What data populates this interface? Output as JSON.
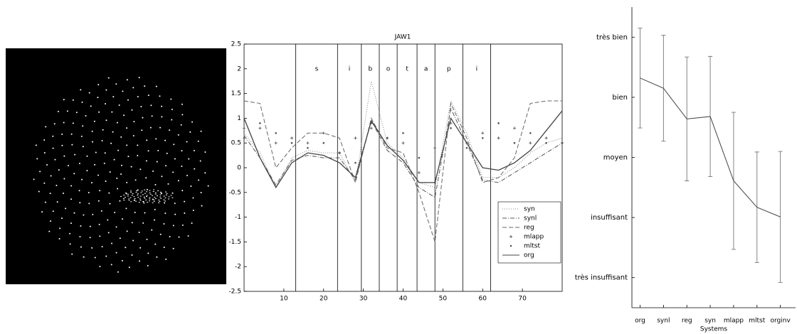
{
  "chart_data": [
    {
      "type": "line",
      "title": "JAW1",
      "x": [
        0,
        4,
        8,
        12,
        16,
        20,
        24,
        28,
        32,
        36,
        40,
        44,
        48,
        52,
        56,
        60,
        64,
        68,
        72,
        76,
        80
      ],
      "xlim": [
        0,
        80
      ],
      "xticks": [
        10,
        20,
        30,
        40,
        50,
        60,
        70
      ],
      "ylim": [
        -2.5,
        2.5
      ],
      "yticks": [
        -2.5,
        -2,
        -1.5,
        -1,
        -0.5,
        0,
        0.5,
        1,
        1.5,
        2,
        2.5
      ],
      "legend": "lower right",
      "segments": {
        "boundaries": [
          13,
          23.5,
          29.5,
          34,
          38.5,
          43.5,
          48,
          55,
          62
        ],
        "labels": [
          "s",
          "i",
          "b",
          "o",
          "t",
          "a",
          "p",
          "i"
        ]
      },
      "series": [
        {
          "name": "syn",
          "color": "#888888",
          "style": "dotted",
          "values": [
            0.7,
            0.3,
            -0.4,
            0.2,
            0.35,
            0.3,
            0.3,
            -0.3,
            1.75,
            0.5,
            0.2,
            -0.3,
            -0.4,
            1.35,
            0.7,
            -0.2,
            -0.2,
            0.0,
            0.3,
            0.5,
            0.6
          ]
        },
        {
          "name": "synl",
          "color": "#555555",
          "style": "dashdot",
          "values": [
            0.65,
            0.2,
            -0.35,
            0.15,
            0.25,
            0.2,
            0.2,
            -0.25,
            0.95,
            0.35,
            0.1,
            -0.4,
            -0.6,
            1.2,
            0.5,
            -0.25,
            -0.3,
            -0.1,
            0.1,
            0.3,
            0.5
          ]
        },
        {
          "name": "reg",
          "color": "#666666",
          "style": "dashed",
          "values": [
            1.35,
            1.3,
            0.0,
            0.4,
            0.7,
            0.7,
            0.6,
            -0.3,
            1.0,
            0.4,
            0.3,
            -0.5,
            -1.5,
            1.3,
            0.6,
            -0.3,
            -0.2,
            0.2,
            1.3,
            1.35,
            1.35
          ]
        },
        {
          "name": "mlapp",
          "color": "#555555",
          "style": "plus",
          "values": [
            0.8,
            0.8,
            0.5,
            0.6,
            0.5,
            0.7,
            0.3,
            0.6,
            0.8,
            0.6,
            0.5,
            -0.1,
            0.4,
            0.9,
            0.5,
            0.7,
            0.6,
            0.8,
            0.5,
            0.6,
            0.5
          ]
        },
        {
          "name": "mltst",
          "color": "#555555",
          "style": "dot",
          "values": [
            0.6,
            0.9,
            0.7,
            0.5,
            0.4,
            0.5,
            0.3,
            0.1,
            0.9,
            0.6,
            0.7,
            0.2,
            -0.3,
            0.8,
            0.4,
            0.6,
            0.9,
            0.5,
            0.7,
            0.5,
            0.5
          ]
        },
        {
          "name": "org",
          "color": "#444444",
          "style": "solid",
          "values": [
            1.0,
            0.2,
            -0.4,
            0.1,
            0.3,
            0.25,
            0.1,
            -0.2,
            0.95,
            0.45,
            0.15,
            -0.3,
            -0.3,
            1.0,
            0.5,
            0.0,
            -0.05,
            0.1,
            0.35,
            0.75,
            1.15
          ]
        }
      ]
    },
    {
      "type": "errorbar",
      "x_label": "Systems",
      "categories": [
        "org",
        "synl",
        "reg",
        "syn",
        "mlapp",
        "mltst",
        "orginv"
      ],
      "values": [
        4.32,
        4.15,
        3.64,
        3.68,
        2.61,
        2.17,
        2.01
      ],
      "errors": [
        0.83,
        0.88,
        1.03,
        1.0,
        1.14,
        0.92,
        1.09
      ],
      "color": "#444444",
      "ylim": [
        0.5,
        5.5
      ],
      "yticks": [
        {
          "value": 1,
          "label": "très insuffisant"
        },
        {
          "value": 2,
          "label": "insuffisant"
        },
        {
          "value": 3,
          "label": "moyen"
        },
        {
          "value": 4,
          "label": "bien"
        },
        {
          "value": 5,
          "label": "très bien"
        }
      ]
    }
  ]
}
